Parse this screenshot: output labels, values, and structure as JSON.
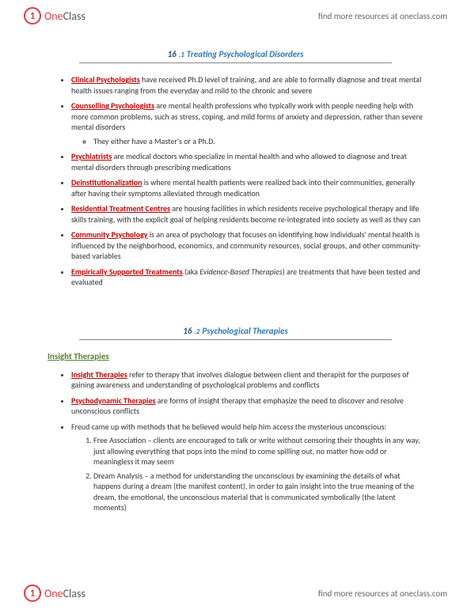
{
  "brand": {
    "one": "One",
    "class": "Class",
    "tagline": "find more resources at oneclass.com"
  },
  "section1": {
    "numMain": "16",
    "numSub": ".1",
    "title": "Treating Psychological Disorders"
  },
  "section2": {
    "numMain": "16",
    "numSub": ".2",
    "title": "Psychological Therapies"
  },
  "subsection1": "Insight Therapies",
  "s1": {
    "t1": "Clinical Psychologists",
    "b1": " have received Ph.D level of training, and are able to formally diagnose and treat mental health issues ranging from the everyday and mild to the chronic and severe",
    "t2": "Counselling Psychologists",
    "b2": " are mental health professions who typically work with people needing help with more common problems, such as stress, coping, and mild forms of anxiety and depression, rather than severe mental disorders",
    "b2sub": "They either have a Master's or a Ph.D.",
    "t3": "Psychiatrists",
    "b3": " are medical doctors who specialize in mental health and who allowed to diagnose and treat mental disorders through prescribing medications",
    "t4": "Deinstitutionalization",
    "b4": " is where mental health patients were realized back into their communities, generally after having their symptoms alleviated through medication",
    "t5": "Residential Treatment Centres",
    "b5": " are housing facilities in which residents receive psychological therapy and life skills training, with the explicit goal of helping residents become re-integrated into society as well as they can",
    "t6": "Community Psychology",
    "b6": " is an area of psychology that focuses on identifying how individuals' mental health is influenced by the neighborhood, economics, and community resources, social groups, and other community-based variables",
    "t7": "Empirically Supported Treatments",
    "b7a": " (aka ",
    "b7i": "Evidence-Based Therapies",
    "b7b": ") are treatments that have been tested and evaluated"
  },
  "s2": {
    "t1": "Insight Therapies",
    "b1": " refer to therapy that involves dialogue between client and therapist for the purposes of gaining awareness and understanding of psychological problems and conflicts",
    "t2": "Psychodynamic Therapies",
    "b2": " are forms of insight therapy that emphasize the need to discover and resolve unconscious conflicts",
    "b3": "Freud came up with methods that he believed would help him access the mysterious unconscious:",
    "o1": "Free Association – clients are encouraged to talk or write without censoring their thoughts in any way, just allowing everything that pops into the mind to come spilling out, no matter how odd or meaningless it may seem",
    "o2": "Dream Analysis – a method for understanding the unconscious by examining the details of what happens during a dream (the manifest content), in order to gain insight into the true meaning of the dream, the emotional, the unconscious material that is communicated symbolically (the latent moments)"
  }
}
